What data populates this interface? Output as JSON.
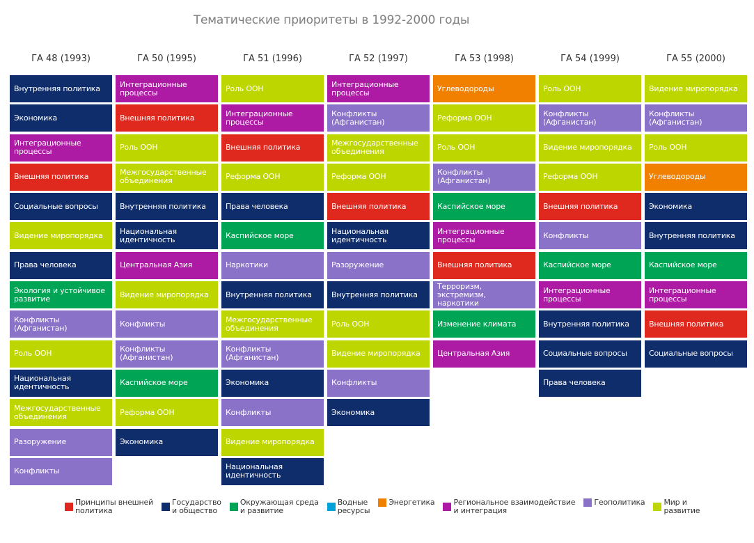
{
  "title": "Тематические приоритеты в 1992-2000 годы",
  "categories": {
    "foreign": {
      "label": "Принципы внешней\nполитика",
      "color": "#e0291e"
    },
    "state": {
      "label": "Государство\nи общество",
      "color": "#0f2c6b"
    },
    "environment": {
      "label": "Окружающая среда\nи развитие",
      "color": "#00a455"
    },
    "water": {
      "label": "Водные\nресурсы",
      "color": "#00a3d9"
    },
    "energy": {
      "label": "Энергетика",
      "color": "#f28000"
    },
    "regional": {
      "label": "Региональное взаимодействие\nи интеграция",
      "color": "#ad1ba4"
    },
    "geopolitics": {
      "label": "Геополитика",
      "color": "#8a72c8"
    },
    "peace": {
      "label": "Мир и\nразвитие",
      "color": "#bed600"
    }
  },
  "legend_order": [
    "foreign",
    "state",
    "environment",
    "water",
    "energy",
    "regional",
    "geopolitics",
    "peace"
  ],
  "columns": [
    {
      "header": "ГА 48 (1993)",
      "items": [
        {
          "label": "Внутренняя политика",
          "cat": "state"
        },
        {
          "label": "Экономика",
          "cat": "state"
        },
        {
          "label": "Интеграционные\nпроцессы",
          "cat": "regional"
        },
        {
          "label": "Внешняя политика",
          "cat": "foreign"
        },
        {
          "label": "Социальные вопросы",
          "cat": "state"
        },
        {
          "label": "Видение миропорядка",
          "cat": "peace"
        },
        {
          "label": "Права человека",
          "cat": "state"
        },
        {
          "label": "Экология и устойчивое\nразвитие",
          "cat": "environment"
        },
        {
          "label": "Конфликты\n(Афганистан)",
          "cat": "geopolitics"
        },
        {
          "label": "Роль ООН",
          "cat": "peace"
        },
        {
          "label": "Национальная\nидентичность",
          "cat": "state"
        },
        {
          "label": "Межгосударственные\nобъединения",
          "cat": "peace"
        },
        {
          "label": "Разоружение",
          "cat": "geopolitics"
        },
        {
          "label": "Конфликты",
          "cat": "geopolitics"
        }
      ]
    },
    {
      "header": "ГА 50 (1995)",
      "items": [
        {
          "label": "Интеграционные\nпроцессы",
          "cat": "regional"
        },
        {
          "label": "Внешняя политика",
          "cat": "foreign"
        },
        {
          "label": "Роль ООН",
          "cat": "peace"
        },
        {
          "label": "Межгосударственные\nобъединения",
          "cat": "peace"
        },
        {
          "label": "Внутренняя политика",
          "cat": "state"
        },
        {
          "label": "Национальная\nидентичность",
          "cat": "state"
        },
        {
          "label": "Центральная Азия",
          "cat": "regional"
        },
        {
          "label": "Видение миропорядка",
          "cat": "peace"
        },
        {
          "label": "Конфликты",
          "cat": "geopolitics"
        },
        {
          "label": "Конфликты\n(Афганистан)",
          "cat": "geopolitics"
        },
        {
          "label": "Каспийское море",
          "cat": "environment"
        },
        {
          "label": "Реформа ООН",
          "cat": "peace"
        },
        {
          "label": "Экономика",
          "cat": "state"
        }
      ]
    },
    {
      "header": "ГА 51 (1996)",
      "items": [
        {
          "label": "Роль ООН",
          "cat": "peace"
        },
        {
          "label": "Интеграционные\nпроцессы",
          "cat": "regional"
        },
        {
          "label": "Внешняя политика",
          "cat": "foreign"
        },
        {
          "label": "Реформа ООН",
          "cat": "peace"
        },
        {
          "label": "Права человека",
          "cat": "state"
        },
        {
          "label": "Каспийское море",
          "cat": "environment"
        },
        {
          "label": "Наркотики",
          "cat": "geopolitics"
        },
        {
          "label": "Внутренняя политика",
          "cat": "state"
        },
        {
          "label": "Межгосударственные\nобъединения",
          "cat": "peace"
        },
        {
          "label": "Конфликты\n(Афганистан)",
          "cat": "geopolitics"
        },
        {
          "label": "Экономика",
          "cat": "state"
        },
        {
          "label": "Конфликты",
          "cat": "geopolitics"
        },
        {
          "label": "Видение миропорядка",
          "cat": "peace"
        },
        {
          "label": "Национальная\nидентичность",
          "cat": "state"
        }
      ]
    },
    {
      "header": "ГА 52 (1997)",
      "items": [
        {
          "label": "Интеграционные\nпроцессы",
          "cat": "regional"
        },
        {
          "label": "Конфликты\n(Афганистан)",
          "cat": "geopolitics"
        },
        {
          "label": "Межгосударственные\nобъединения",
          "cat": "peace"
        },
        {
          "label": "Реформа ООН",
          "cat": "peace"
        },
        {
          "label": "Внешняя политика",
          "cat": "foreign"
        },
        {
          "label": "Национальная\nидентичность",
          "cat": "state"
        },
        {
          "label": "Разоружение",
          "cat": "geopolitics"
        },
        {
          "label": "Внутренняя политика",
          "cat": "state"
        },
        {
          "label": "Роль ООН",
          "cat": "peace"
        },
        {
          "label": "Видение миропорядка",
          "cat": "peace"
        },
        {
          "label": "Конфликты",
          "cat": "geopolitics"
        },
        {
          "label": "Экономика",
          "cat": "state"
        }
      ]
    },
    {
      "header": "ГА 53 (1998)",
      "items": [
        {
          "label": "Углеводороды",
          "cat": "energy"
        },
        {
          "label": "Реформа ООН",
          "cat": "peace"
        },
        {
          "label": "Роль ООН",
          "cat": "peace"
        },
        {
          "label": "Конфликты\n(Афганистан)",
          "cat": "geopolitics"
        },
        {
          "label": "Каспийское море",
          "cat": "environment"
        },
        {
          "label": "Интеграционные\nпроцессы",
          "cat": "regional"
        },
        {
          "label": "Внешняя политика",
          "cat": "foreign"
        },
        {
          "label": "Терроризм, экстремизм,\nнаркотики",
          "cat": "geopolitics"
        },
        {
          "label": "Изменение климата",
          "cat": "environment"
        },
        {
          "label": "Центральная Азия",
          "cat": "regional"
        }
      ]
    },
    {
      "header": "ГА 54 (1999)",
      "items": [
        {
          "label": "Роль ООН",
          "cat": "peace"
        },
        {
          "label": "Конфликты\n(Афганистан)",
          "cat": "geopolitics"
        },
        {
          "label": "Видение миропорядка",
          "cat": "peace"
        },
        {
          "label": "Реформа ООН",
          "cat": "peace"
        },
        {
          "label": "Внешняя политика",
          "cat": "foreign"
        },
        {
          "label": "Конфликты",
          "cat": "geopolitics"
        },
        {
          "label": "Каспийское море",
          "cat": "environment"
        },
        {
          "label": "Интеграционные\nпроцессы",
          "cat": "regional"
        },
        {
          "label": "Внутренняя политика",
          "cat": "state"
        },
        {
          "label": "Социальные вопросы",
          "cat": "state"
        },
        {
          "label": "Права человека",
          "cat": "state"
        }
      ]
    },
    {
      "header": "ГА 55 (2000)",
      "items": [
        {
          "label": "Видение миропорядка",
          "cat": "peace"
        },
        {
          "label": "Конфликты\n(Афганистан)",
          "cat": "geopolitics"
        },
        {
          "label": "Роль ООН",
          "cat": "peace"
        },
        {
          "label": "Углеводороды",
          "cat": "energy"
        },
        {
          "label": "Экономика",
          "cat": "state"
        },
        {
          "label": "Внутренняя политика",
          "cat": "state"
        },
        {
          "label": "Каспийское море",
          "cat": "environment"
        },
        {
          "label": "Интеграционные\nпроцессы",
          "cat": "regional"
        },
        {
          "label": "Внешняя политика",
          "cat": "foreign"
        },
        {
          "label": "Социальные вопросы",
          "cat": "state"
        }
      ]
    }
  ]
}
